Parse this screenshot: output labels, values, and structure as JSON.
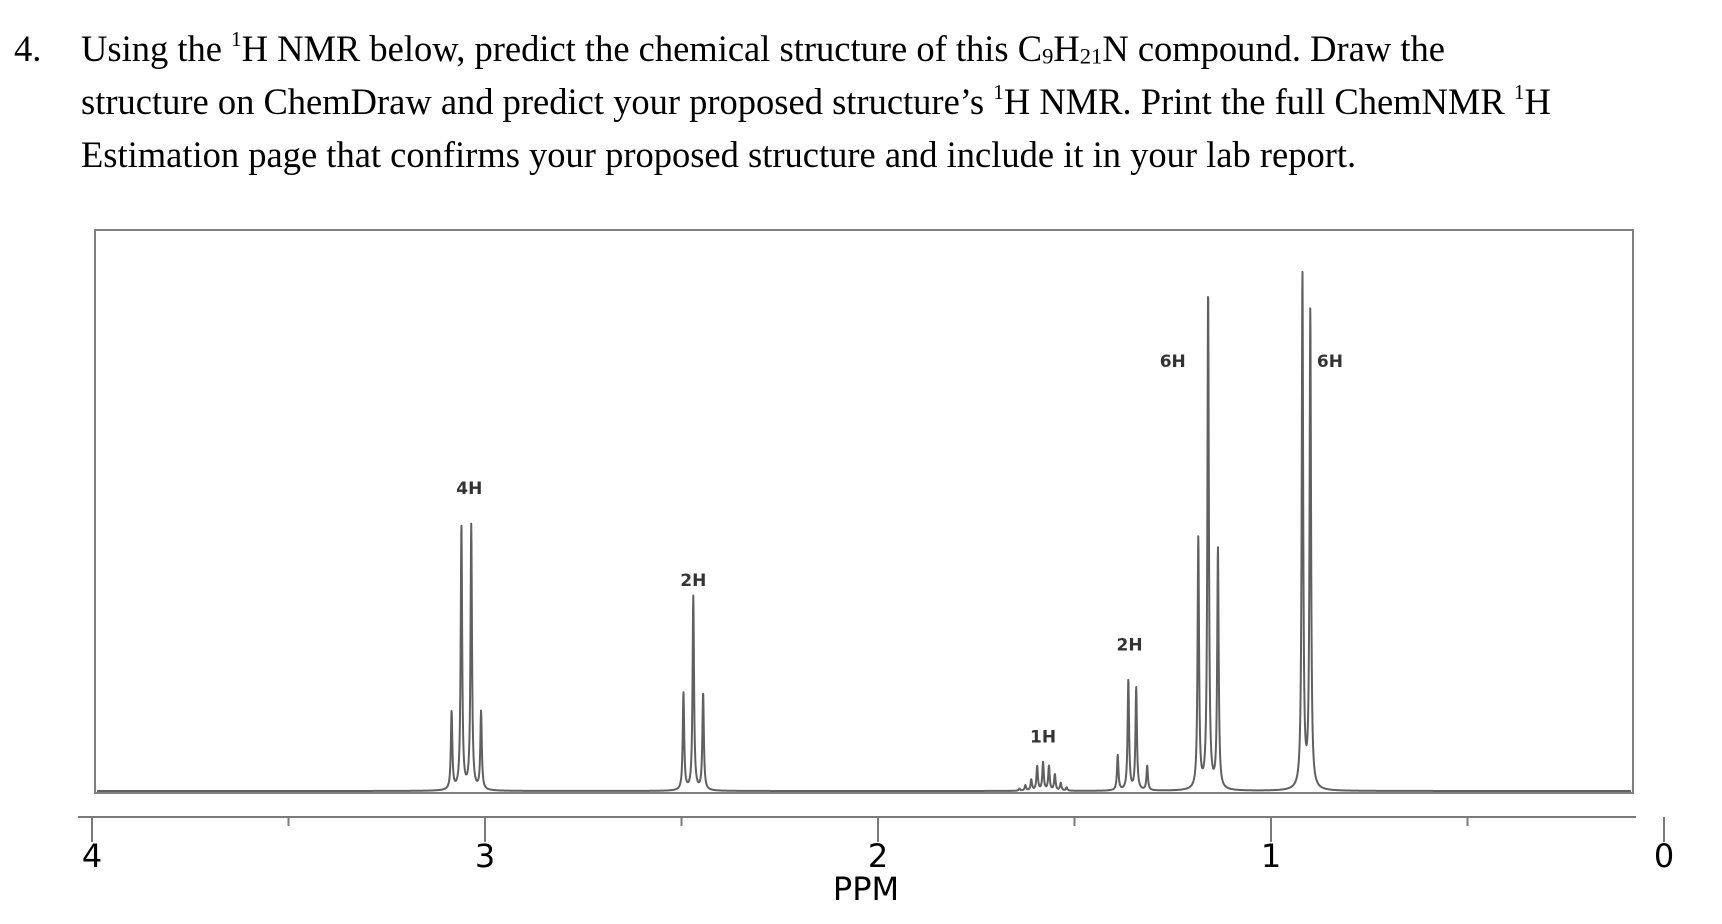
{
  "question": {
    "number": "4.",
    "line1": {
      "a": "Using the ",
      "sup1": "1",
      "b": "H NMR below, predict the chemical structure of this C",
      "sub1": "9",
      "c": "H",
      "sub2": "21",
      "d": "N compound. Draw the"
    },
    "line2": {
      "a": "structure on ChemDraw and predict your proposed structure’s ",
      "sup1": "1",
      "b": "H NMR. Print the full ChemNMR ",
      "sup2": "1",
      "c": "H"
    },
    "line3": "Estimation page that confirms your proposed structure and include it in your lab report."
  },
  "chart_data": {
    "type": "line",
    "title": "",
    "xlabel": "PPM",
    "ylabel": "",
    "x_reversed": true,
    "xlim": [
      4,
      0
    ],
    "x_ticks": [
      "4",
      "3",
      "2",
      "1",
      "0"
    ],
    "grid": false,
    "colors": {
      "spectrum": "#606060",
      "frame": "#808080",
      "axis": "#7a7a7a",
      "label": "#333333"
    },
    "signals": [
      {
        "id": "sig-3-03",
        "integration": "4H",
        "multiplicity": "quartet",
        "shift_ppm": 3.03,
        "lines": [
          {
            "ppm": 3.085,
            "h": 0.145
          },
          {
            "ppm": 3.06,
            "h": 0.49
          },
          {
            "ppm": 3.035,
            "h": 0.49
          },
          {
            "ppm": 3.01,
            "h": 0.145
          }
        ]
      },
      {
        "id": "sig-2-47",
        "integration": "2H",
        "multiplicity": "triplet",
        "shift_ppm": 2.47,
        "lines": [
          {
            "ppm": 2.495,
            "h": 0.18
          },
          {
            "ppm": 2.47,
            "h": 0.36
          },
          {
            "ppm": 2.445,
            "h": 0.18
          }
        ]
      },
      {
        "id": "sig-1-58",
        "integration": "1H",
        "multiplicity": "nonet",
        "shift_ppm": 1.58,
        "lines": [
          {
            "ppm": 1.64,
            "h": 0.004
          },
          {
            "ppm": 1.625,
            "h": 0.01
          },
          {
            "ppm": 1.61,
            "h": 0.02
          },
          {
            "ppm": 1.595,
            "h": 0.045
          },
          {
            "ppm": 1.58,
            "h": 0.052
          },
          {
            "ppm": 1.565,
            "h": 0.045
          },
          {
            "ppm": 1.55,
            "h": 0.03
          },
          {
            "ppm": 1.535,
            "h": 0.014
          },
          {
            "ppm": 1.52,
            "h": 0.006
          }
        ]
      },
      {
        "id": "sig-1-35",
        "integration": "2H",
        "multiplicity": "quartet",
        "shift_ppm": 1.35,
        "lines": [
          {
            "ppm": 1.39,
            "h": 0.065
          },
          {
            "ppm": 1.363,
            "h": 0.205
          },
          {
            "ppm": 1.343,
            "h": 0.19
          },
          {
            "ppm": 1.315,
            "h": 0.045
          }
        ]
      },
      {
        "id": "sig-1-16",
        "integration": "6H",
        "multiplicity": "triplet",
        "shift_ppm": 1.16,
        "lines": [
          {
            "ppm": 1.185,
            "h": 0.465
          },
          {
            "ppm": 1.16,
            "h": 0.925
          },
          {
            "ppm": 1.135,
            "h": 0.445
          }
        ]
      },
      {
        "id": "sig-0-91",
        "integration": "6H",
        "multiplicity": "doublet",
        "shift_ppm": 0.91,
        "lines": [
          {
            "ppm": 0.92,
            "h": 0.955
          },
          {
            "ppm": 0.9,
            "h": 0.885
          }
        ]
      }
    ],
    "integration_labels": [
      {
        "text": "4H",
        "ppm": 3.04,
        "height": 0.55
      },
      {
        "text": "2H",
        "ppm": 2.47,
        "height": 0.38
      },
      {
        "text": "1H",
        "ppm": 1.58,
        "height": 0.09
      },
      {
        "text": "2H",
        "ppm": 1.36,
        "height": 0.26
      },
      {
        "text": "6H",
        "ppm": 1.25,
        "height": 0.785
      },
      {
        "text": "6H",
        "ppm": 0.85,
        "height": 0.785
      }
    ]
  }
}
